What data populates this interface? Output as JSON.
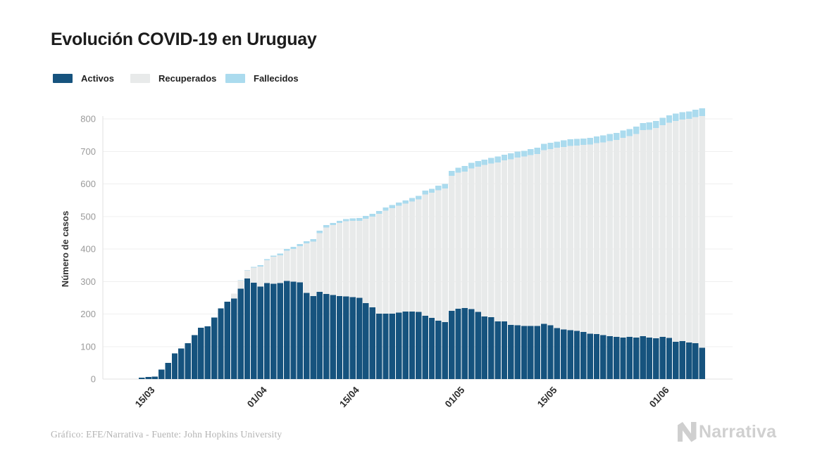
{
  "title": "Evolución COVID-19 en Uruguay",
  "footer": {
    "credit": "Gráfico: EFE/Narrativa - Fuente: John Hopkins University",
    "brand": "Narrativa"
  },
  "chart_data": {
    "type": "bar",
    "stacked": true,
    "title": "Evolución COVID-19 en Uruguay",
    "xlabel": "",
    "ylabel": "Número de casos",
    "ylim": [
      0,
      850
    ],
    "grid": true,
    "legend_position": "top-left",
    "yticks": [
      0,
      100,
      200,
      300,
      400,
      500,
      600,
      700,
      800
    ],
    "xticks": [
      {
        "label": "15/03",
        "i": 2
      },
      {
        "label": "01/04",
        "i": 19
      },
      {
        "label": "15/04",
        "i": 33
      },
      {
        "label": "01/05",
        "i": 49
      },
      {
        "label": "15/05",
        "i": 63
      },
      {
        "label": "01/06",
        "i": 80
      }
    ],
    "x": [
      "13/03",
      "14/03",
      "15/03",
      "16/03",
      "17/03",
      "18/03",
      "19/03",
      "20/03",
      "21/03",
      "22/03",
      "23/03",
      "24/03",
      "25/03",
      "26/03",
      "27/03",
      "28/03",
      "29/03",
      "30/03",
      "31/03",
      "01/04",
      "02/04",
      "03/04",
      "04/04",
      "05/04",
      "06/04",
      "07/04",
      "08/04",
      "09/04",
      "10/04",
      "11/04",
      "12/04",
      "13/04",
      "14/04",
      "15/04",
      "16/04",
      "17/04",
      "18/04",
      "19/04",
      "20/04",
      "21/04",
      "22/04",
      "23/04",
      "24/04",
      "25/04",
      "26/04",
      "27/04",
      "28/04",
      "29/04",
      "30/04",
      "01/05",
      "02/05",
      "03/05",
      "04/05",
      "05/05",
      "06/05",
      "07/05",
      "08/05",
      "09/05",
      "10/05",
      "11/05",
      "12/05",
      "13/05",
      "14/05",
      "15/05",
      "16/05",
      "17/05",
      "18/05",
      "19/05",
      "20/05",
      "21/05",
      "22/05",
      "23/05",
      "24/05",
      "25/05",
      "26/05",
      "27/05",
      "28/05",
      "29/05",
      "30/05",
      "31/05",
      "01/06",
      "02/06",
      "03/06",
      "04/06",
      "05/06",
      "06/06"
    ],
    "series": [
      {
        "name": "Activos",
        "color": "#16537e",
        "values": [
          4,
          6,
          8,
          29,
          50,
          79,
          94,
          110,
          135,
          158,
          162,
          189,
          217,
          238,
          248,
          278,
          309,
          296,
          284,
          295,
          293,
          295,
          302,
          300,
          297,
          265,
          255,
          268,
          262,
          258,
          255,
          254,
          252,
          250,
          233,
          221,
          201,
          201,
          201,
          204,
          208,
          208,
          207,
          195,
          188,
          180,
          175,
          210,
          216,
          218,
          215,
          207,
          192,
          190,
          177,
          177,
          167,
          165,
          163,
          163,
          163,
          170,
          165,
          157,
          152,
          150,
          148,
          145,
          140,
          138,
          135,
          132,
          130,
          128,
          130,
          128,
          132,
          128,
          125,
          130,
          127,
          115,
          117,
          112,
          110,
          96
        ]
      },
      {
        "name": "Recuperados",
        "color": "#e8eaea",
        "values": [
          0,
          0,
          0,
          0,
          0,
          0,
          0,
          0,
          0,
          0,
          0,
          0,
          0,
          0,
          15,
          25,
          25,
          47,
          62,
          70,
          83,
          86,
          93,
          100,
          112,
          152,
          168,
          181,
          204,
          215,
          225,
          231,
          234,
          237,
          260,
          278,
          307,
          317,
          324,
          329,
          331,
          338,
          345,
          373,
          385,
          401,
          411,
          415,
          419,
          420,
          433,
          446,
          466,
          473,
          489,
          495,
          509,
          516,
          521,
          526,
          529,
          534,
          542,
          554,
          562,
          567,
          570,
          575,
          581,
          587,
          593,
          600,
          605,
          614,
          617,
          626,
          633,
          639,
          647,
          651,
          661,
          678,
          681,
          688,
          695,
          713
        ]
      },
      {
        "name": "Fallecidos",
        "color": "#abdbee",
        "values": [
          0,
          0,
          0,
          0,
          0,
          0,
          0,
          0,
          0,
          0,
          0,
          0,
          0,
          0,
          0,
          1,
          1,
          2,
          4,
          4,
          4,
          5,
          5,
          6,
          6,
          7,
          7,
          7,
          7,
          7,
          7,
          7,
          8,
          8,
          9,
          9,
          9,
          10,
          10,
          10,
          10,
          11,
          11,
          12,
          12,
          14,
          14,
          15,
          15,
          17,
          17,
          17,
          17,
          17,
          18,
          18,
          18,
          18,
          18,
          18,
          19,
          19,
          19,
          19,
          20,
          20,
          20,
          20,
          21,
          21,
          21,
          21,
          22,
          22,
          22,
          22,
          22,
          22,
          22,
          22,
          23,
          23,
          23,
          23,
          23,
          23
        ]
      }
    ]
  }
}
